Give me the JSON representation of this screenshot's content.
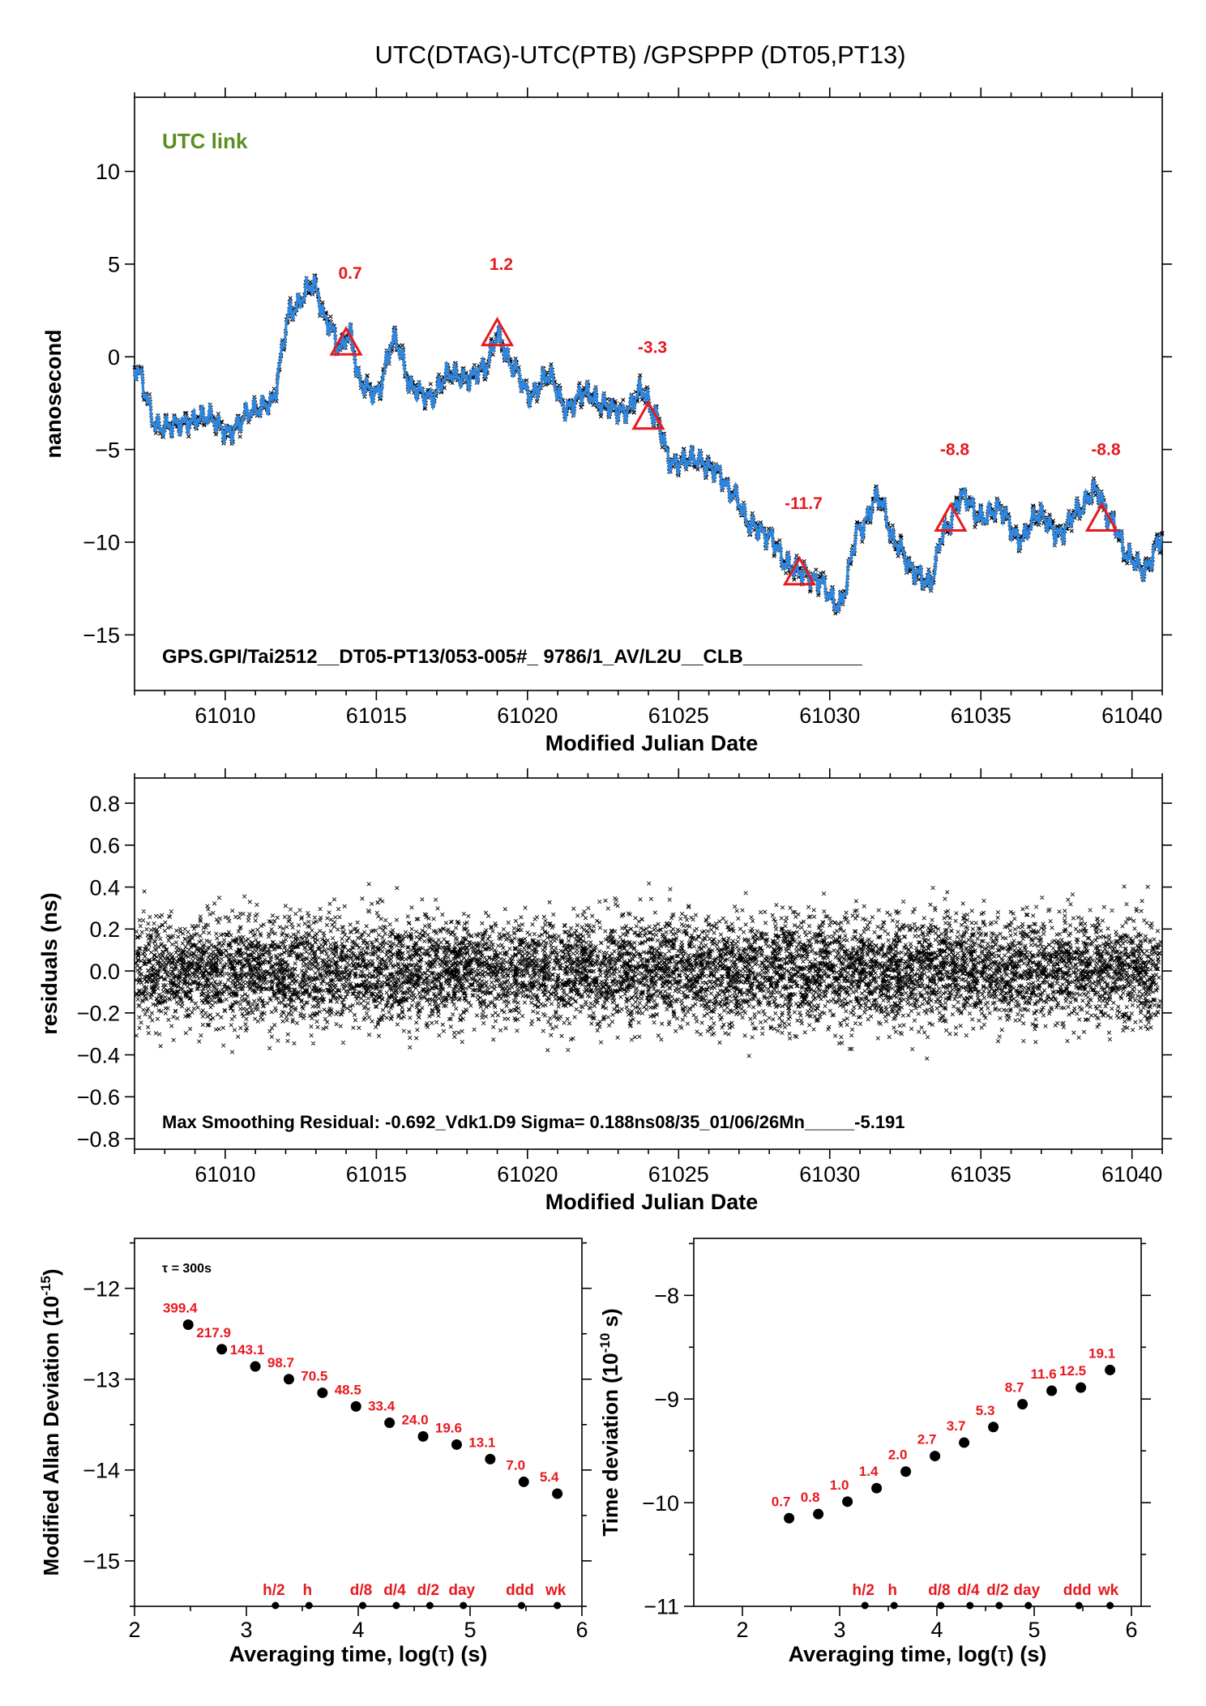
{
  "figure_title": "UTC(DTAG)-UTC(PTB)  /GPSPPP  (DT05,PT13)",
  "colors": {
    "trace": "#2e86de",
    "noise": "#000000",
    "marker": "#e8191e",
    "legend_green": "#5a8f1e"
  },
  "chart_data": [
    {
      "type": "line",
      "panel": "top",
      "title": "",
      "legend": "UTC link",
      "xlabel": "Modified Julian Date",
      "ylabel": "nanosecond",
      "xlim": [
        61007,
        61041
      ],
      "ylim": [
        -18,
        14
      ],
      "x_ticks": [
        61010,
        61015,
        61020,
        61025,
        61030,
        61035,
        61040
      ],
      "y_ticks": [
        10,
        5,
        0,
        -5,
        -10,
        -15
      ],
      "y_tick_labels": [
        "10",
        "5",
        "0",
        "−5",
        "−10",
        "−15"
      ],
      "annotation": "GPS.GPI/Tai2512__DT05-PT13/053-005#_  9786/1_AV/L2U__CLB___________",
      "series": [
        {
          "x": [
            61007,
            61007.8,
            61008.6,
            61009.4,
            61010.1,
            61010.9,
            61011.5,
            61012.2,
            61012.9,
            61013.4,
            61013.8,
            61014.1,
            61014.5,
            61015.0,
            61015.6,
            61016.2,
            61016.8,
            61017.4,
            61018.0,
            61018.6,
            61019.0,
            61019.5,
            61020.1,
            61020.7,
            61021.3,
            61021.9,
            61022.5,
            61023.2,
            61023.8,
            61024.2,
            61024.8,
            61025.5,
            61026.2,
            61026.8,
            61027.4,
            61028.0,
            61028.6,
            61029.0,
            61029.6,
            61030.3,
            61031.0,
            61031.6,
            61032.2,
            61032.8,
            61033.3,
            61033.8,
            61034.4,
            61035.0,
            61035.6,
            61036.3,
            61036.9,
            61037.6,
            61038.2,
            61038.8,
            61039.3,
            61039.9,
            61040.4,
            61041.0
          ],
          "y": [
            -0.6,
            -3.8,
            -3.6,
            -3.2,
            -4.1,
            -2.9,
            -2.5,
            2.5,
            3.9,
            1.8,
            0.5,
            1.2,
            -1.5,
            -2.0,
            0.9,
            -1.7,
            -2.2,
            -0.9,
            -1.2,
            -0.6,
            1.1,
            -0.5,
            -2.1,
            -1.0,
            -2.8,
            -1.9,
            -2.6,
            -3.0,
            -1.8,
            -3.2,
            -5.8,
            -5.5,
            -6.1,
            -7.4,
            -9.1,
            -9.7,
            -11.2,
            -11.6,
            -12.1,
            -13.4,
            -9.3,
            -7.6,
            -10.1,
            -11.6,
            -12.2,
            -9.4,
            -7.5,
            -8.7,
            -8.2,
            -9.9,
            -8.5,
            -9.6,
            -8.3,
            -7.2,
            -8.8,
            -10.8,
            -11.5,
            -9.8
          ]
        }
      ],
      "markers": {
        "x": [
          61014,
          61019,
          61024,
          61029,
          61034,
          61039
        ],
        "y": [
          0.7,
          1.2,
          -3.3,
          -11.7,
          -8.8,
          -8.8
        ],
        "labels": [
          "0.7",
          "1.2",
          "-3.3",
          "-11.7",
          "-8.8",
          "-8.8"
        ]
      }
    },
    {
      "type": "scatter",
      "panel": "middle",
      "title": "",
      "xlabel": "Modified Julian Date",
      "ylabel": "residuals (ns)",
      "xlim": [
        61007,
        61041
      ],
      "ylim": [
        -0.85,
        0.92
      ],
      "x_ticks": [
        61010,
        61015,
        61020,
        61025,
        61030,
        61035,
        61040
      ],
      "y_ticks": [
        0.8,
        0.6,
        0.4,
        0.2,
        0.0,
        -0.2,
        -0.4,
        -0.6,
        -0.8
      ],
      "y_tick_labels": [
        "0.8",
        "0.6",
        "0.4",
        "0.2",
        "0.0",
        "−0.2",
        "−0.4",
        "−0.6",
        "−0.8"
      ],
      "sigma_ns": 0.188,
      "max_smoothing_residual": -0.692,
      "annotation": "Max Smoothing Residual: -0.692_Vdk1.D9  Sigma= 0.188ns08/35_01/06/26Mn_____-5.191"
    },
    {
      "type": "scatter",
      "panel": "bottom-left",
      "title": "",
      "xlabel": "Averaging time, log(τ) (s)",
      "ylabel": "Modified Allan Deviation (10⁻¹⁵)",
      "ylabel_main": "Modified Allan Deviation (10",
      "ylabel_exp": "-15",
      "ylabel_close": ")",
      "xlabel_main": "Averaging time, log(",
      "xlabel_tau": "τ",
      "xlabel_close": ") (s)",
      "legend": "τ = 300s",
      "xlim": [
        2,
        6
      ],
      "ylim": [
        -15.5,
        -11.45
      ],
      "x_ticks": [
        2,
        3,
        4,
        5,
        6
      ],
      "y_ticks": [
        -12,
        -13,
        -14,
        -15
      ],
      "y_tick_labels": [
        "−12",
        "−13",
        "−14",
        "−15"
      ],
      "x": [
        2.48,
        2.78,
        3.08,
        3.38,
        3.68,
        3.98,
        4.28,
        4.58,
        4.88,
        5.18,
        5.48,
        5.78
      ],
      "y": [
        -12.4,
        -12.67,
        -12.86,
        -13.0,
        -13.15,
        -13.3,
        -13.48,
        -13.63,
        -13.72,
        -13.88,
        -14.13,
        -14.26
      ],
      "labels": [
        "399.4",
        "217.9",
        "143.1",
        "98.7",
        "70.5",
        "48.5",
        "33.4",
        "24.0",
        "19.6",
        "13.1",
        "7.0",
        "5.4"
      ],
      "interval_marks": {
        "x": [
          3.26,
          3.56,
          4.04,
          4.34,
          4.64,
          4.94,
          5.46,
          5.78
        ],
        "labels": [
          "h/2",
          "h",
          "d/8",
          "d/4",
          "d/2",
          "day",
          "ddd",
          "wk"
        ]
      }
    },
    {
      "type": "scatter",
      "panel": "bottom-right",
      "title": "",
      "xlabel": "Averaging time, log(τ) (s)",
      "ylabel": "Time deviation (10⁻¹⁰ s)",
      "ylabel_main": "Time deviation (10",
      "ylabel_exp": "-10",
      "ylabel_close": " s)",
      "xlabel_main": "Averaging time, log(",
      "xlabel_tau": "τ",
      "xlabel_close": ") (s)",
      "xlim": [
        1.5,
        6.1
      ],
      "ylim": [
        -11,
        -7.45
      ],
      "x_ticks": [
        2,
        3,
        4,
        5,
        6
      ],
      "y_ticks": [
        -8,
        -9,
        -10,
        -11
      ],
      "y_tick_labels": [
        "−8",
        "−9",
        "−10",
        "−11"
      ],
      "x": [
        2.48,
        2.78,
        3.08,
        3.38,
        3.68,
        3.98,
        4.28,
        4.58,
        4.88,
        5.18,
        5.48,
        5.78
      ],
      "y": [
        -10.15,
        -10.11,
        -9.99,
        -9.86,
        -9.7,
        -9.55,
        -9.42,
        -9.27,
        -9.05,
        -8.92,
        -8.89,
        -8.72
      ],
      "labels": [
        "0.7",
        "0.8",
        "1.0",
        "1.4",
        "2.0",
        "2.7",
        "3.7",
        "5.3",
        "8.7",
        "11.6",
        "12.5",
        "19.1"
      ],
      "interval_marks": {
        "x": [
          3.26,
          3.56,
          4.04,
          4.34,
          4.64,
          4.94,
          5.46,
          5.78
        ],
        "labels": [
          "h/2",
          "h",
          "d/8",
          "d/4",
          "d/2",
          "day",
          "ddd",
          "wk"
        ]
      }
    }
  ]
}
